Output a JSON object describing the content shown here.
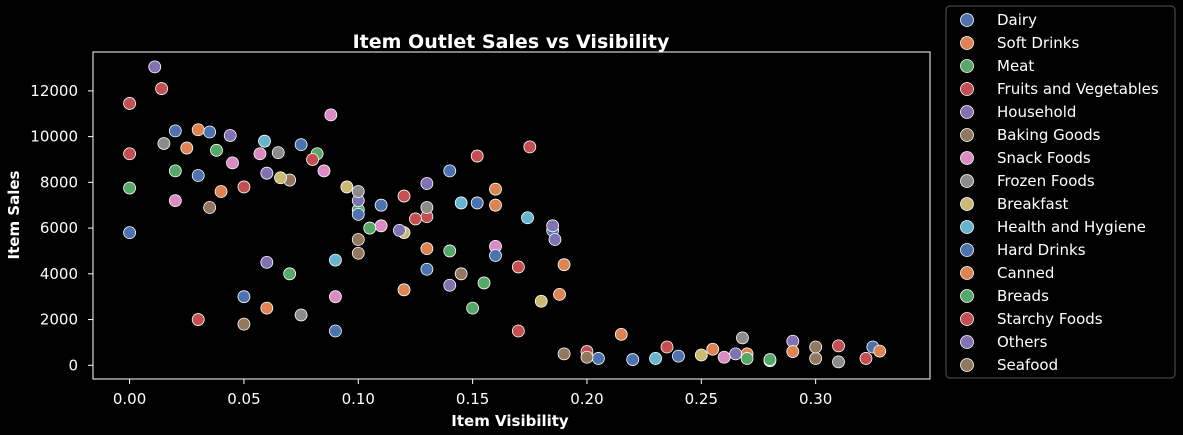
{
  "chart_data": {
    "type": "scatter",
    "title": "Item Outlet Sales vs Visibility",
    "xlabel": "Item Visibility",
    "ylabel": "Item Sales",
    "xlim": [
      -0.016,
      0.35
    ],
    "ylim": [
      -600,
      13700
    ],
    "xticks": [
      0.0,
      0.05,
      0.1,
      0.15,
      0.2,
      0.25,
      0.3
    ],
    "xtick_labels": [
      "0.00",
      "0.05",
      "0.10",
      "0.15",
      "0.20",
      "0.25",
      "0.30"
    ],
    "yticks": [
      0,
      2000,
      4000,
      6000,
      8000,
      10000,
      12000
    ],
    "ytick_labels": [
      "0",
      "2000",
      "4000",
      "6000",
      "8000",
      "10000",
      "12000"
    ],
    "grid": false,
    "legend_position": "outside-right",
    "series": [
      {
        "name": "Dairy",
        "color": "#4c72b0",
        "points": [
          [
            0.0,
            5800
          ],
          [
            0.02,
            10250
          ],
          [
            0.035,
            10200
          ],
          [
            0.075,
            9650
          ],
          [
            0.14,
            8500
          ],
          [
            0.11,
            7000
          ],
          [
            0.152,
            7100
          ],
          [
            0.185,
            5900
          ],
          [
            0.05,
            3000
          ],
          [
            0.09,
            1500
          ],
          [
            0.13,
            4200
          ],
          [
            0.205,
            300
          ],
          [
            0.24,
            400
          ],
          [
            0.325,
            800
          ]
        ]
      },
      {
        "name": "Soft Drinks",
        "color": "#dd8452",
        "points": [
          [
            0.03,
            10300
          ],
          [
            0.025,
            9500
          ],
          [
            0.16,
            7700
          ],
          [
            0.16,
            7000
          ],
          [
            0.19,
            4400
          ],
          [
            0.215,
            1350
          ],
          [
            0.255,
            700
          ],
          [
            0.328,
            620
          ],
          [
            0.06,
            2500
          ],
          [
            0.12,
            3300
          ],
          [
            0.27,
            500
          ]
        ]
      },
      {
        "name": "Meat",
        "color": "#55a868",
        "points": [
          [
            0.0,
            7750
          ],
          [
            0.038,
            9400
          ],
          [
            0.082,
            9250
          ],
          [
            0.1,
            6800
          ],
          [
            0.14,
            5000
          ],
          [
            0.27,
            300
          ],
          [
            0.28,
            200
          ],
          [
            0.07,
            4000
          ],
          [
            0.15,
            2500
          ]
        ]
      },
      {
        "name": "Fruits and Vegetables",
        "color": "#c44e52",
        "points": [
          [
            0.0,
            11450
          ],
          [
            0.0,
            9250
          ],
          [
            0.014,
            12100
          ],
          [
            0.152,
            9150
          ],
          [
            0.175,
            9550
          ],
          [
            0.08,
            9000
          ],
          [
            0.12,
            7400
          ],
          [
            0.13,
            6500
          ],
          [
            0.03,
            2000
          ],
          [
            0.17,
            1500
          ],
          [
            0.31,
            850
          ],
          [
            0.322,
            300
          ],
          [
            0.2,
            600
          ]
        ]
      },
      {
        "name": "Household",
        "color": "#8172b3",
        "points": [
          [
            0.011,
            13050
          ],
          [
            0.044,
            10050
          ],
          [
            0.13,
            7950
          ],
          [
            0.185,
            6100
          ],
          [
            0.29,
            1050
          ],
          [
            0.1,
            7200
          ],
          [
            0.06,
            4500
          ],
          [
            0.14,
            3500
          ]
        ]
      },
      {
        "name": "Baking Goods",
        "color": "#937860",
        "points": [
          [
            0.07,
            8100
          ],
          [
            0.1,
            5500
          ],
          [
            0.145,
            4000
          ],
          [
            0.19,
            500
          ],
          [
            0.3,
            300
          ],
          [
            0.05,
            1800
          ]
        ]
      },
      {
        "name": "Snack Foods",
        "color": "#da8bc3",
        "points": [
          [
            0.088,
            10950
          ],
          [
            0.057,
            9250
          ],
          [
            0.045,
            8850
          ],
          [
            0.085,
            8500
          ],
          [
            0.02,
            7200
          ],
          [
            0.11,
            6100
          ],
          [
            0.16,
            5200
          ],
          [
            0.26,
            350
          ],
          [
            0.09,
            3000
          ]
        ]
      },
      {
        "name": "Frozen Foods",
        "color": "#8c8c8c",
        "points": [
          [
            0.015,
            9700
          ],
          [
            0.065,
            9300
          ],
          [
            0.1,
            7600
          ],
          [
            0.13,
            6900
          ],
          [
            0.268,
            1200
          ],
          [
            0.31,
            150
          ],
          [
            0.075,
            2200
          ]
        ]
      },
      {
        "name": "Breakfast",
        "color": "#ccb974",
        "points": [
          [
            0.066,
            8200
          ],
          [
            0.095,
            7800
          ],
          [
            0.12,
            5800
          ],
          [
            0.25,
            450
          ],
          [
            0.18,
            2800
          ]
        ]
      },
      {
        "name": "Health and Hygiene",
        "color": "#64b5cd",
        "points": [
          [
            0.059,
            9800
          ],
          [
            0.145,
            7100
          ],
          [
            0.174,
            6450
          ],
          [
            0.09,
            4600
          ],
          [
            0.23,
            300
          ]
        ]
      },
      {
        "name": "Hard Drinks",
        "color": "#4c72b0",
        "points": [
          [
            0.03,
            8300
          ],
          [
            0.1,
            6600
          ],
          [
            0.16,
            4800
          ],
          [
            0.22,
            250
          ]
        ]
      },
      {
        "name": "Canned",
        "color": "#dd8452",
        "points": [
          [
            0.04,
            7600
          ],
          [
            0.13,
            5100
          ],
          [
            0.188,
            3100
          ],
          [
            0.29,
            600
          ]
        ]
      },
      {
        "name": "Breads",
        "color": "#55a868",
        "points": [
          [
            0.02,
            8500
          ],
          [
            0.105,
            6000
          ],
          [
            0.155,
            3600
          ],
          [
            0.28,
            250
          ]
        ]
      },
      {
        "name": "Starchy Foods",
        "color": "#c44e52",
        "points": [
          [
            0.05,
            7800
          ],
          [
            0.125,
            6400
          ],
          [
            0.17,
            4300
          ],
          [
            0.235,
            800
          ]
        ]
      },
      {
        "name": "Others",
        "color": "#8172b3",
        "points": [
          [
            0.06,
            8400
          ],
          [
            0.118,
            5900
          ],
          [
            0.186,
            5500
          ],
          [
            0.265,
            500
          ]
        ]
      },
      {
        "name": "Seafood",
        "color": "#937860",
        "points": [
          [
            0.035,
            6900
          ],
          [
            0.1,
            4900
          ],
          [
            0.3,
            800
          ],
          [
            0.2,
            350
          ]
        ]
      }
    ]
  }
}
